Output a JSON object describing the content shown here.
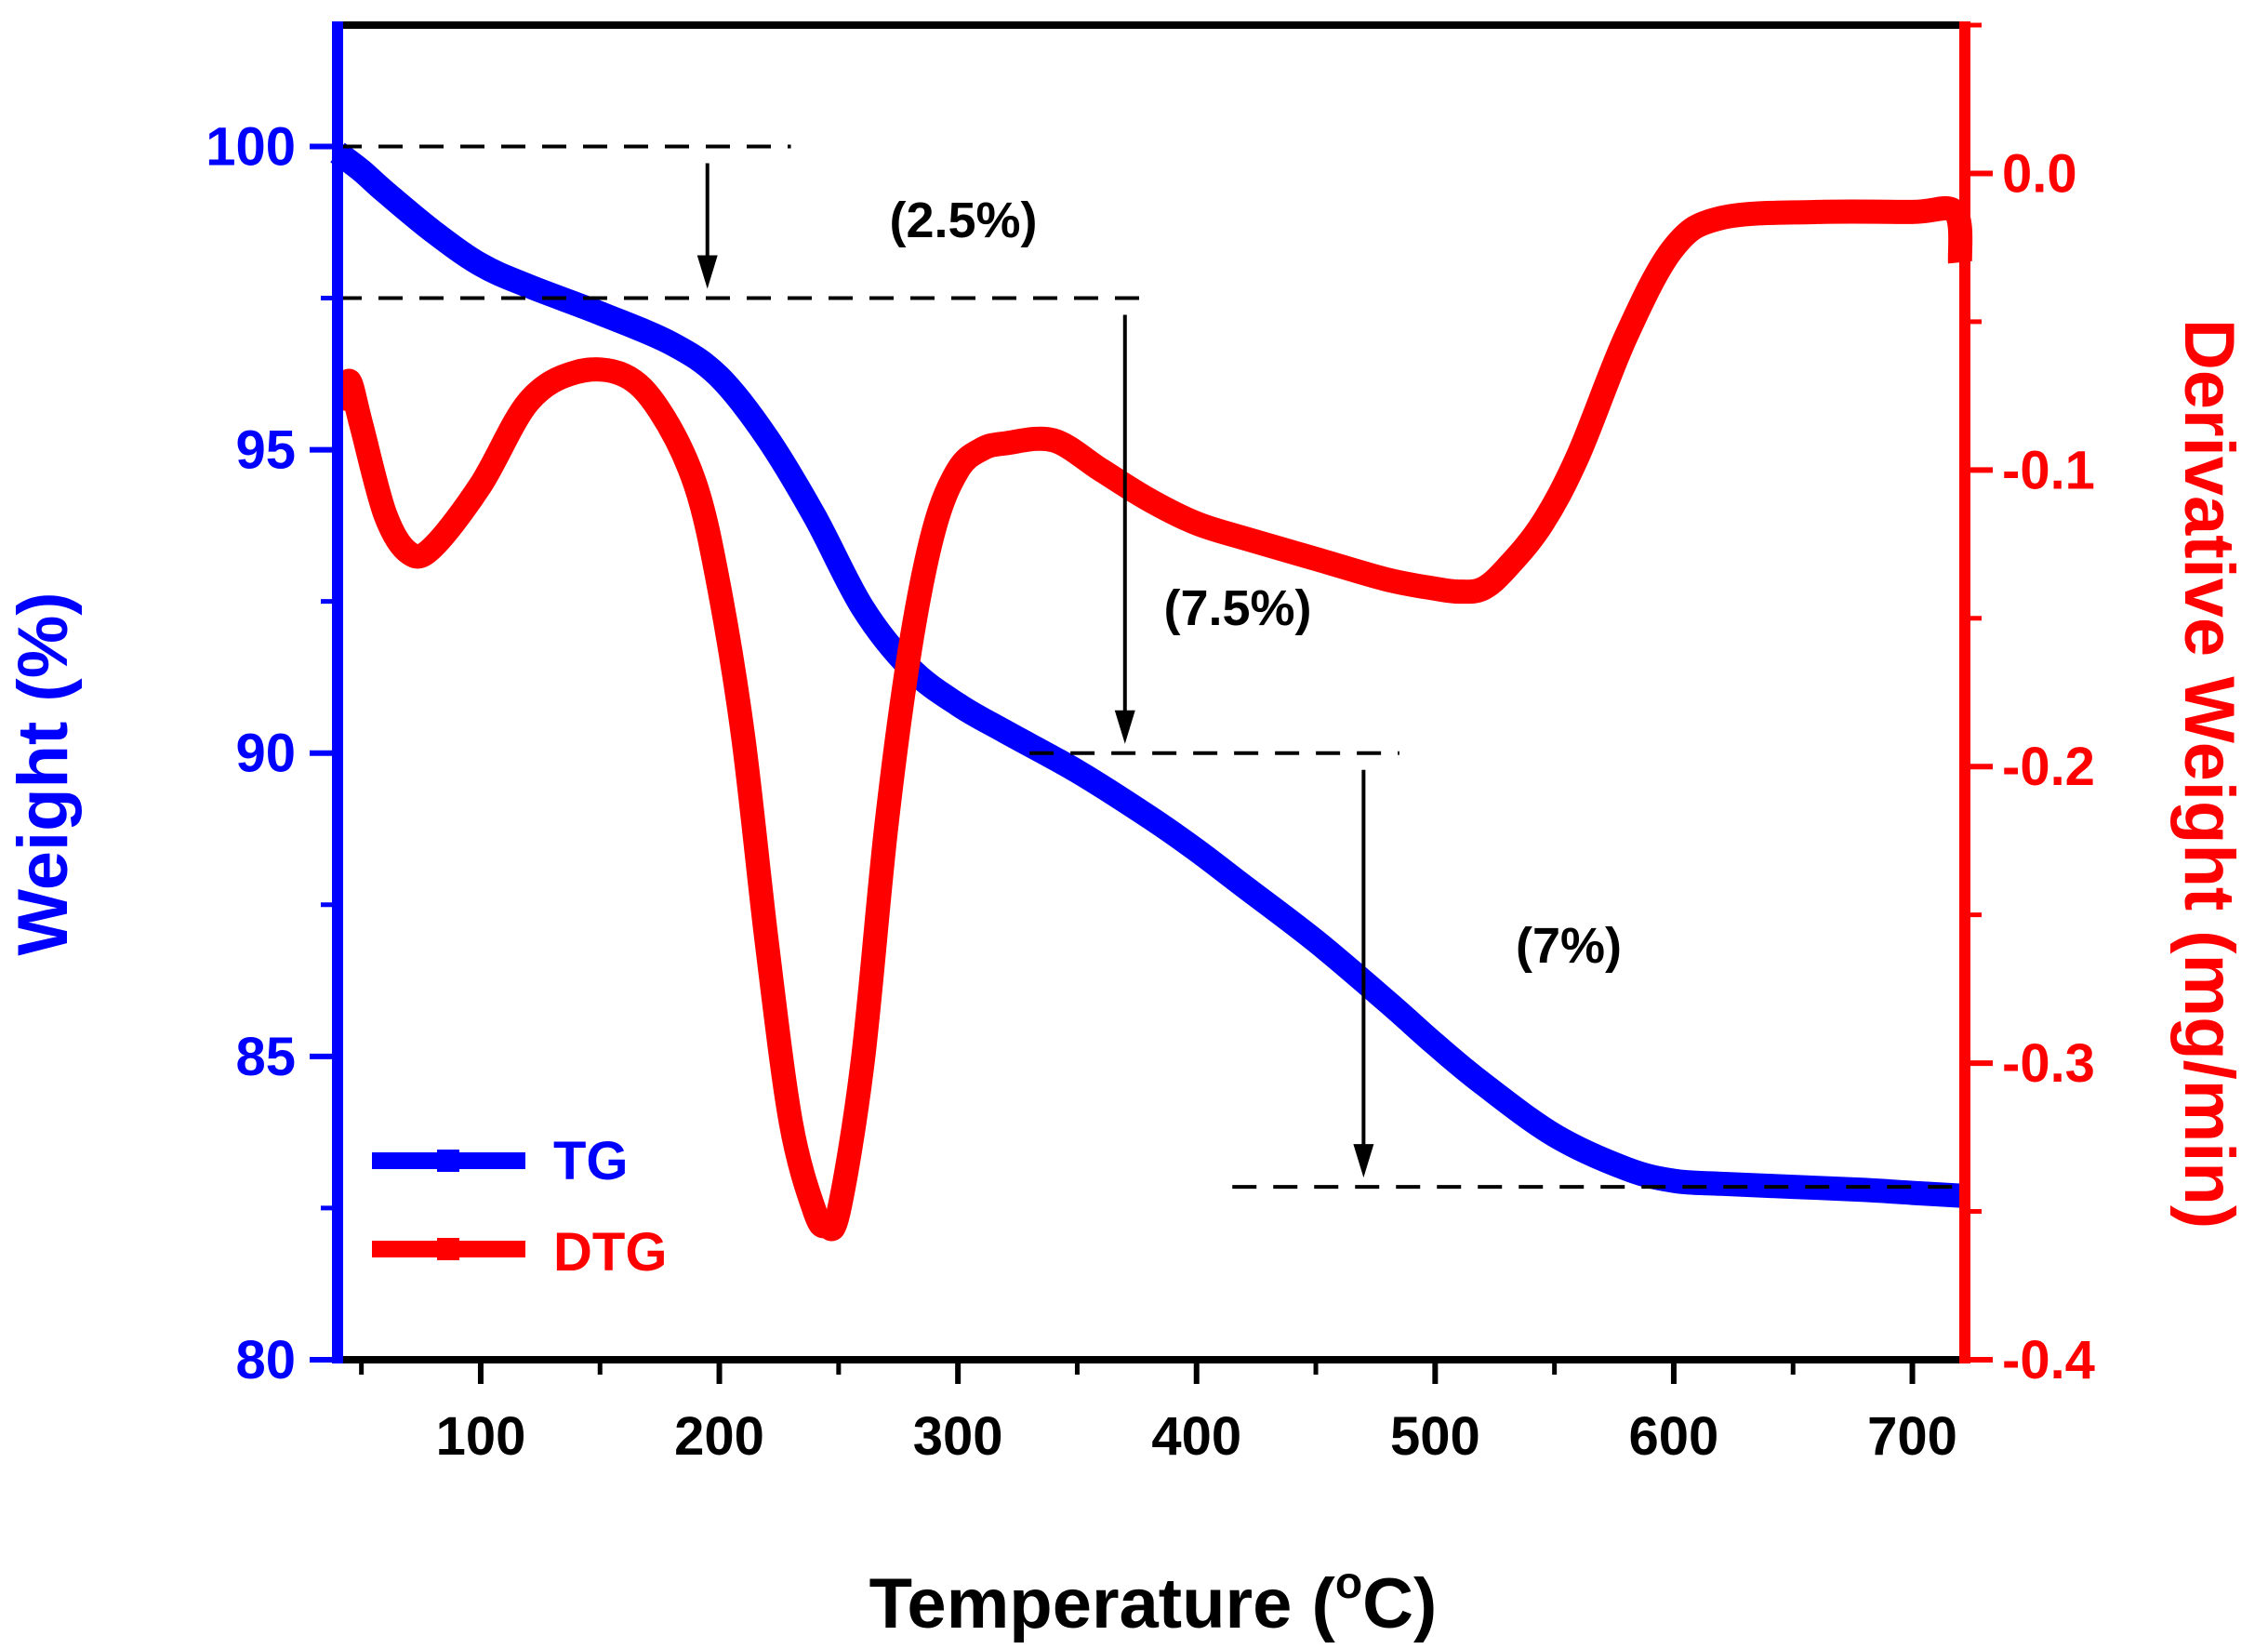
{
  "chart_data": {
    "type": "line",
    "title": "",
    "xlabel": "Temperature (°C)",
    "xlabel_main": "Temperature (",
    "xlabel_deg": "o",
    "xlabel_unit": "C)",
    "ylabel_left": "Weight (%)",
    "ylabel_right": "Derivative Weight (mg/min)",
    "xlim": [
      40,
      722
    ],
    "ylim_left": [
      80,
      102
    ],
    "ylim_right": [
      -0.4,
      0.05
    ],
    "x_ticks": [
      100,
      200,
      300,
      400,
      500,
      600,
      700
    ],
    "x_tick_labels": [
      "100",
      "200",
      "300",
      "400",
      "500",
      "600",
      "700"
    ],
    "y_left_ticks": [
      80,
      85,
      90,
      95,
      100
    ],
    "y_left_tick_labels": [
      "80",
      "85",
      "90",
      "95",
      "100"
    ],
    "y_right_ticks": [
      -0.4,
      -0.3,
      -0.2,
      -0.1,
      0.0
    ],
    "y_right_tick_labels": [
      "-0.4",
      "-0.3",
      "-0.2",
      "-0.1",
      "0.0"
    ],
    "colors": {
      "tg": "#0000ff",
      "dtg": "#ff0000",
      "frame": "#000000"
    },
    "legend": {
      "position": "bottom-left",
      "entries": [
        "TG",
        "DTG"
      ]
    },
    "series": [
      {
        "name": "TG",
        "axis": "left",
        "x": [
          40,
          50,
          60,
          80,
          100,
          120,
          150,
          180,
          200,
          220,
          240,
          260,
          280,
          300,
          320,
          350,
          380,
          400,
          420,
          450,
          480,
          500,
          520,
          550,
          580,
          600,
          620,
          650,
          680,
          700,
          722
        ],
        "values": [
          99.9,
          99.6,
          99.25,
          98.6,
          98.05,
          97.7,
          97.25,
          96.75,
          96.2,
          95.2,
          93.9,
          92.4,
          91.4,
          90.8,
          90.35,
          89.7,
          88.95,
          88.4,
          87.8,
          86.9,
          85.9,
          85.2,
          84.55,
          83.7,
          83.15,
          82.95,
          82.9,
          82.85,
          82.8,
          82.75,
          82.7
        ]
      },
      {
        "name": "DTG",
        "axis": "right",
        "x": [
          43,
          45,
          50,
          60,
          70,
          80,
          100,
          120,
          140,
          160,
          175,
          190,
          200,
          210,
          220,
          230,
          240,
          245,
          250,
          260,
          270,
          280,
          290,
          300,
          310,
          320,
          340,
          360,
          380,
          400,
          420,
          450,
          480,
          500,
          510,
          520,
          530,
          545,
          560,
          580,
          600,
          620,
          660,
          700,
          718,
          720
        ],
        "values": [
          -0.08,
          -0.07,
          -0.085,
          -0.115,
          -0.128,
          -0.126,
          -0.105,
          -0.077,
          -0.067,
          -0.068,
          -0.08,
          -0.105,
          -0.14,
          -0.19,
          -0.26,
          -0.32,
          -0.35,
          -0.355,
          -0.35,
          -0.3,
          -0.22,
          -0.16,
          -0.12,
          -0.1,
          -0.093,
          -0.091,
          -0.09,
          -0.1,
          -0.11,
          -0.118,
          -0.123,
          -0.13,
          -0.137,
          -0.14,
          -0.141,
          -0.14,
          -0.133,
          -0.118,
          -0.095,
          -0.055,
          -0.025,
          -0.015,
          -0.013,
          -0.013,
          -0.013,
          -0.03
        ]
      }
    ],
    "annotations": [
      {
        "label": "(2.5%)",
        "level_from": 100,
        "level_to": 97.5,
        "arrow_x": 195,
        "dash_from_x": [
          40,
          230
        ],
        "dash_to_x": [
          40,
          380
        ]
      },
      {
        "label": "(7.5%)",
        "level_from": 97.5,
        "level_to": 90,
        "arrow_x": 370,
        "dash_from_x": null,
        "dash_to_x": [
          330,
          485
        ]
      },
      {
        "label": "(7%)",
        "level_from": 90,
        "level_to": 82.85,
        "arrow_x": 470,
        "dash_from_x": null,
        "dash_to_x": [
          415,
          722
        ]
      }
    ]
  }
}
